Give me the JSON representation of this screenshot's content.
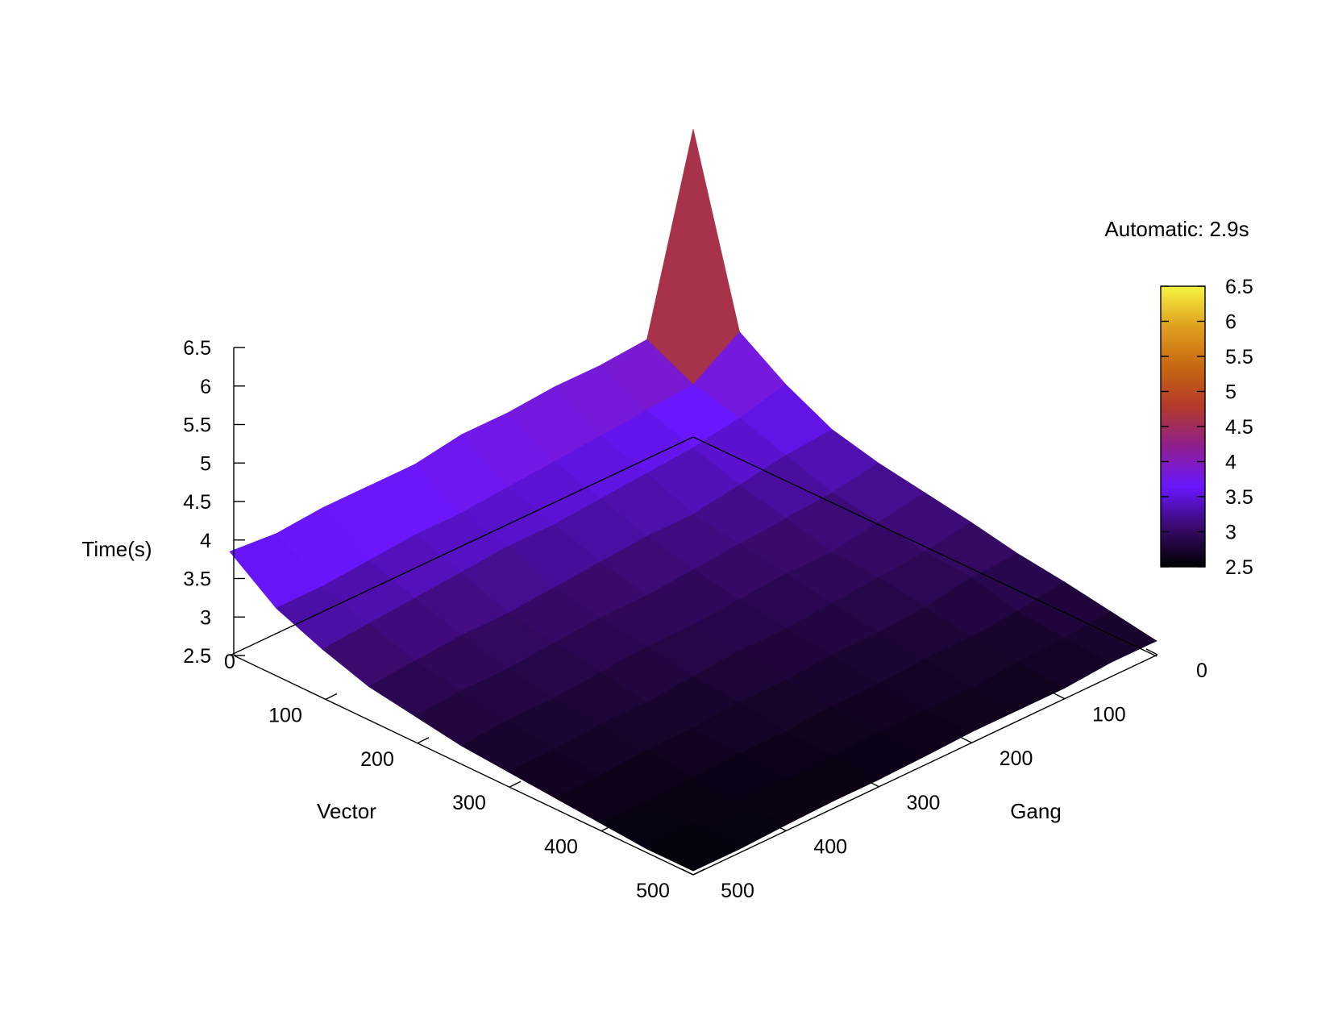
{
  "chart_data": {
    "type": "surface3d",
    "annotation": "Automatic: 2.9s",
    "xlabel": "Vector",
    "ylabel": "Gang",
    "zlabel": "Time(s)",
    "x": [
      0,
      50,
      100,
      150,
      200,
      250,
      300,
      350,
      400,
      450,
      500
    ],
    "y": [
      0,
      50,
      100,
      150,
      200,
      250,
      300,
      350,
      400,
      450,
      500
    ],
    "xlim": [
      0,
      500
    ],
    "ylim": [
      0,
      500
    ],
    "zlim": [
      2.5,
      6.5
    ],
    "x_ticks": [
      "0",
      "100",
      "200",
      "300",
      "400",
      "500"
    ],
    "y_ticks": [
      "0",
      "100",
      "200",
      "300",
      "400",
      "500"
    ],
    "z_ticks": [
      "2.5",
      "3",
      "3.5",
      "4",
      "4.5",
      "5",
      "5.5",
      "6",
      "6.5"
    ],
    "colorbar": {
      "range": [
        2.5,
        6.5
      ],
      "ticks": [
        "2.5",
        "3",
        "3.5",
        "4",
        "4.5",
        "5",
        "5.5",
        "6",
        "6.5"
      ],
      "palette": [
        "#000000",
        "#3a0a6e",
        "#6a16ff",
        "#8f1f8f",
        "#b33a2a",
        "#c76810",
        "#e0a020",
        "#f5f540"
      ]
    },
    "z": [
      [
        6.5,
        4.15,
        3.75,
        3.45,
        3.3,
        3.2,
        3.1,
        2.98,
        2.9,
        2.8,
        2.7
      ],
      [
        4.05,
        3.75,
        3.6,
        3.4,
        3.2,
        3.1,
        3.0,
        2.95,
        2.8,
        2.73,
        2.7
      ],
      [
        4.0,
        3.7,
        3.5,
        3.3,
        3.15,
        3.0,
        2.95,
        2.85,
        2.75,
        2.7,
        2.65
      ],
      [
        4.0,
        3.65,
        3.45,
        3.2,
        3.1,
        3.0,
        2.9,
        2.8,
        2.75,
        2.65,
        2.65
      ],
      [
        3.95,
        3.6,
        3.4,
        3.2,
        3.05,
        2.95,
        2.85,
        2.8,
        2.7,
        2.65,
        2.65
      ],
      [
        3.95,
        3.55,
        3.35,
        3.15,
        3.0,
        2.9,
        2.85,
        2.75,
        2.7,
        2.65,
        2.62
      ],
      [
        3.85,
        3.5,
        3.35,
        3.1,
        3.0,
        2.9,
        2.8,
        2.75,
        2.65,
        2.62,
        2.6
      ],
      [
        3.85,
        3.5,
        3.3,
        3.05,
        2.95,
        2.85,
        2.75,
        2.7,
        2.65,
        2.6,
        2.6
      ],
      [
        3.85,
        3.45,
        3.25,
        3.05,
        2.9,
        2.8,
        2.75,
        2.7,
        2.62,
        2.6,
        2.58
      ],
      [
        3.8,
        3.4,
        3.2,
        3.0,
        2.9,
        2.8,
        2.7,
        2.65,
        2.6,
        2.58,
        2.55
      ],
      [
        3.85,
        3.4,
        3.15,
        2.95,
        2.85,
        2.75,
        2.7,
        2.65,
        2.6,
        2.55,
        2.55
      ]
    ]
  }
}
